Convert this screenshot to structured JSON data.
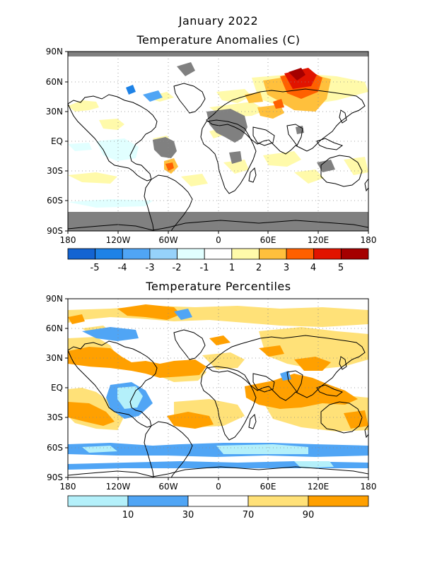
{
  "header": {
    "period": "January 2022",
    "panel1_title": "Temperature Anomalies (C)",
    "panel2_title": "Temperature Percentiles"
  },
  "axes": {
    "lat_labels": [
      "90N",
      "60N",
      "30N",
      "EQ",
      "30S",
      "60S",
      "90S"
    ],
    "lon_labels": [
      "180",
      "120W",
      "60W",
      "0",
      "60E",
      "120E",
      "180"
    ]
  },
  "anomaly_scale": {
    "colors": [
      "#1464d2",
      "#1e82e6",
      "#50a5f5",
      "#96d2fa",
      "#e1ffff",
      "#ffffff",
      "#fffaaa",
      "#ffc03c",
      "#ff6000",
      "#e11400",
      "#a50000"
    ],
    "labels": [
      "-5",
      "-4",
      "-3",
      "-2",
      "-1",
      "1",
      "2",
      "3",
      "4",
      "5"
    ]
  },
  "percentile_scale": {
    "colors": [
      "#b4f0fa",
      "#50a5f5",
      "#ffffff",
      "#ffe178",
      "#ffa000"
    ],
    "labels": [
      "10",
      "30",
      "70",
      "90"
    ]
  },
  "missing_color": "#808080"
}
